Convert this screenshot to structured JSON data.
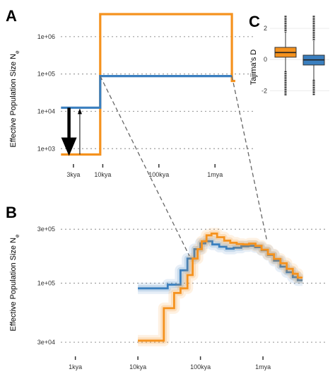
{
  "figure": {
    "panels": [
      {
        "id": "A",
        "letter": "A"
      },
      {
        "id": "B",
        "letter": "B"
      },
      {
        "id": "C",
        "letter": "C"
      }
    ]
  },
  "colors": {
    "series_orange": "#f5921e",
    "series_blue": "#3a7fbf",
    "grid": "#9e9e9e",
    "connector": "#666666"
  },
  "chart_data": [
    {
      "panel": "A",
      "type": "line",
      "ylabel": "Effective Population Size N",
      "ylabel_subscript": "e",
      "yscale": "log",
      "ylim": [
        600,
        4000000
      ],
      "y_ticks": [
        {
          "value": 1000,
          "label": "1e+03"
        },
        {
          "value": 10000,
          "label": "1e+04"
        },
        {
          "value": 100000,
          "label": "1e+05"
        },
        {
          "value": 1000000,
          "label": "1e+06"
        }
      ],
      "xscale": "log",
      "xlim": [
        1500,
        4000000
      ],
      "x_ticks": [
        {
          "value": 3000,
          "label": "3kya"
        },
        {
          "value": 10000,
          "label": "10kya"
        },
        {
          "value": 100000,
          "label": "100kya"
        },
        {
          "value": 1000000,
          "label": "1mya"
        }
      ],
      "grid": {
        "horizontal": true,
        "vertical": false
      },
      "series": [
        {
          "color": "orange",
          "steps": [
            [
              1800,
              700
            ],
            [
              9000,
              700
            ],
            [
              9000,
              4000000
            ],
            [
              2000000,
              4000000
            ],
            [
              2000000,
              65000
            ],
            [
              2300000,
              65000
            ]
          ]
        },
        {
          "color": "blue",
          "steps": [
            [
              1800,
              12500
            ],
            [
              9000,
              12500
            ],
            [
              9000,
              88000
            ],
            [
              2000000,
              88000
            ]
          ]
        }
      ],
      "annotations": [
        {
          "kind": "arrow-bold-down",
          "x": 2500,
          "from": 12500,
          "to": 700
        },
        {
          "kind": "arrow-thin-up",
          "x": 3900,
          "from": 700,
          "to": 12500
        }
      ]
    },
    {
      "panel": "B",
      "type": "line",
      "ylabel": "Effective Population Size N",
      "ylabel_subscript": "e",
      "yscale": "log",
      "ylim": [
        26000,
        390000
      ],
      "y_ticks": [
        {
          "value": 30000,
          "label": "3e+04"
        },
        {
          "value": 100000,
          "label": "1e+05"
        },
        {
          "value": 300000,
          "label": "3e+05"
        }
      ],
      "xscale": "log",
      "xlim": [
        500,
        8000000
      ],
      "x_ticks": [
        {
          "value": 1000,
          "label": "1kya"
        },
        {
          "value": 10000,
          "label": "10kya"
        },
        {
          "value": 100000,
          "label": "100kya"
        },
        {
          "value": 1000000,
          "label": "1mya"
        }
      ],
      "grid": {
        "horizontal": true,
        "vertical": false
      },
      "series": [
        {
          "color": "blue",
          "steps": [
            [
              10000,
              90000
            ],
            [
              30000,
              90000
            ],
            [
              30000,
              97000
            ],
            [
              48000,
              97000
            ],
            [
              48000,
              130000
            ],
            [
              62000,
              130000
            ],
            [
              62000,
              165000
            ],
            [
              80000,
              165000
            ],
            [
              80000,
              200000
            ],
            [
              100000,
              200000
            ],
            [
              100000,
              225000
            ],
            [
              120000,
              225000
            ],
            [
              120000,
              235000
            ],
            [
              155000,
              235000
            ],
            [
              155000,
              220000
            ],
            [
              200000,
              220000
            ],
            [
              200000,
              210000
            ],
            [
              260000,
              210000
            ],
            [
              260000,
              202000
            ],
            [
              340000,
              202000
            ],
            [
              340000,
              206000
            ],
            [
              450000,
              206000
            ],
            [
              450000,
              212000
            ],
            [
              580000,
              212000
            ],
            [
              580000,
              214000
            ],
            [
              750000,
              214000
            ],
            [
              750000,
              208000
            ],
            [
              950000,
              208000
            ],
            [
              950000,
              196000
            ],
            [
              1200000,
              196000
            ],
            [
              1200000,
              178000
            ],
            [
              1500000,
              178000
            ],
            [
              1500000,
              158000
            ],
            [
              1900000,
              158000
            ],
            [
              1900000,
              140000
            ],
            [
              2400000,
              140000
            ],
            [
              2400000,
              125000
            ],
            [
              3000000,
              125000
            ],
            [
              3000000,
              113000
            ],
            [
              3600000,
              113000
            ],
            [
              3600000,
              106000
            ],
            [
              4300000,
              106000
            ]
          ]
        },
        {
          "color": "orange",
          "steps": [
            [
              10000,
              31000
            ],
            [
              26000,
              31000
            ],
            [
              26000,
              60000
            ],
            [
              38000,
              60000
            ],
            [
              38000,
              82000
            ],
            [
              48000,
              82000
            ],
            [
              48000,
              90000
            ],
            [
              62000,
              90000
            ],
            [
              62000,
              118000
            ],
            [
              75000,
              118000
            ],
            [
              75000,
              165000
            ],
            [
              90000,
              165000
            ],
            [
              90000,
              200000
            ],
            [
              105000,
              200000
            ],
            [
              105000,
              235000
            ],
            [
              125000,
              235000
            ],
            [
              125000,
              265000
            ],
            [
              150000,
              265000
            ],
            [
              150000,
              275000
            ],
            [
              185000,
              275000
            ],
            [
              185000,
              255000
            ],
            [
              240000,
              255000
            ],
            [
              240000,
              238000
            ],
            [
              300000,
              238000
            ],
            [
              300000,
              228000
            ],
            [
              380000,
              228000
            ],
            [
              380000,
              222000
            ],
            [
              480000,
              222000
            ],
            [
              480000,
              220000
            ],
            [
              600000,
              220000
            ],
            [
              600000,
              224000
            ],
            [
              760000,
              224000
            ],
            [
              760000,
              214000
            ],
            [
              950000,
              214000
            ],
            [
              950000,
              198000
            ],
            [
              1200000,
              198000
            ],
            [
              1200000,
              180000
            ],
            [
              1500000,
              180000
            ],
            [
              1500000,
              164000
            ],
            [
              1900000,
              164000
            ],
            [
              1900000,
              150000
            ],
            [
              2400000,
              150000
            ],
            [
              2400000,
              134000
            ],
            [
              3000000,
              134000
            ],
            [
              3000000,
              121000
            ],
            [
              3600000,
              121000
            ],
            [
              3600000,
              112000
            ],
            [
              4300000,
              112000
            ]
          ]
        }
      ]
    },
    {
      "panel": "C",
      "type": "box",
      "ylabel": "Tajima's D",
      "ylim": [
        -2.8,
        3.0
      ],
      "y_ticks": [
        {
          "value": -2,
          "label": "-2"
        },
        {
          "value": 0,
          "label": "0"
        },
        {
          "value": 2,
          "label": "2"
        }
      ],
      "series": [
        {
          "color": "orange",
          "q1": 0.15,
          "median": 0.45,
          "q3": 0.78,
          "whisker_low": -0.75,
          "whisker_high": 1.75,
          "outlier_low": -2.3,
          "outlier_high": 2.8
        },
        {
          "color": "blue",
          "q1": -0.35,
          "median": -0.02,
          "q3": 0.28,
          "whisker_low": -1.3,
          "whisker_high": 1.2,
          "outlier_low": -2.3,
          "outlier_high": 2.8
        }
      ]
    }
  ]
}
